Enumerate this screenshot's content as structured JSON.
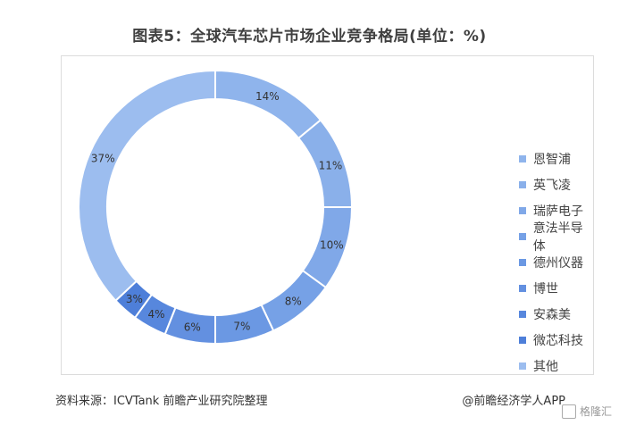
{
  "title": "图表5：全球汽车芯片市场企业竞争格局(单位：%)",
  "chart_data": {
    "type": "pie",
    "title": "图表5：全球汽车芯片市场企业竞争格局(单位：%)",
    "categories": [
      "恩智浦",
      "英飞凌",
      "瑞萨电子",
      "意法半导体",
      "德州仪器",
      "博世",
      "安森美",
      "微芯科技",
      "其他"
    ],
    "values": [
      14,
      11,
      10,
      8,
      7,
      6,
      4,
      3,
      37
    ],
    "labels": [
      "14%",
      "11%",
      "10%",
      "8%",
      "7%",
      "6%",
      "4%",
      "3%",
      "37%"
    ],
    "colors": [
      "#8fb4ec",
      "#8ab0ea",
      "#80a8e8",
      "#76a1e6",
      "#6b98e3",
      "#6390e0",
      "#5787dd",
      "#4e7fd9",
      "#9cbdef"
    ],
    "legend_position": "right"
  },
  "source": "资料来源：ICVTank 前瞻产业研究院整理",
  "credit": "@前瞻经济学人APP",
  "corner_logo": "格隆汇"
}
